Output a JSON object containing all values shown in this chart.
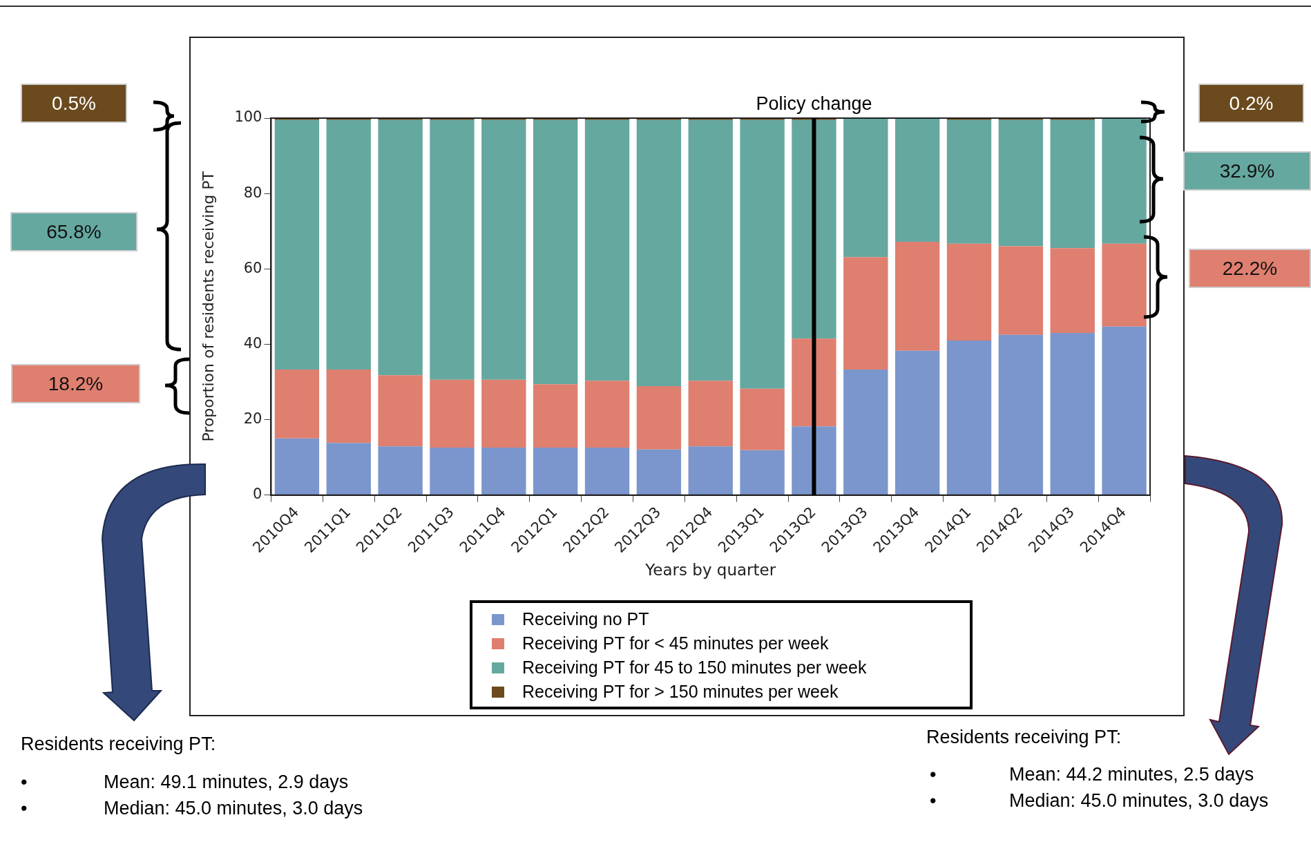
{
  "chart_data": {
    "type": "bar",
    "stacked": true,
    "xlabel": "Years by quarter",
    "ylabel": "Proportion of residents receiving PT",
    "categories": [
      "2010Q4",
      "2011Q1",
      "2011Q2",
      "2011Q3",
      "2011Q4",
      "2012Q1",
      "2012Q2",
      "2012Q3",
      "2012Q4",
      "2013Q1",
      "2013Q2",
      "2013Q3",
      "2013Q4",
      "2014Q1",
      "2014Q2",
      "2014Q3",
      "2014Q4"
    ],
    "series": [
      {
        "name": "Receiving no  PT",
        "color": "#7b96cc",
        "values": [
          15.0,
          13.8,
          12.9,
          12.6,
          12.6,
          12.6,
          12.6,
          12.1,
          12.9,
          11.9,
          18.2,
          33.3,
          38.3,
          41.0,
          42.5,
          43.0,
          44.7
        ]
      },
      {
        "name": "Receiving PT for < 45 minutes per week",
        "color": "#df7f6f",
        "values": [
          18.3,
          19.5,
          18.9,
          18.0,
          18.0,
          16.8,
          17.7,
          16.8,
          17.4,
          16.3,
          23.3,
          29.8,
          28.9,
          25.7,
          23.5,
          22.5,
          22.0
        ]
      },
      {
        "name": "Receiving PT for 45 to 150 minutes per week",
        "color": "#65a8a0",
        "values": [
          66.2,
          66.2,
          67.7,
          68.9,
          68.9,
          70.1,
          69.2,
          70.6,
          69.2,
          71.3,
          58.0,
          36.9,
          32.8,
          32.8,
          33.5,
          34.0,
          33.3
        ]
      },
      {
        "name": "Receiving PT for > 150 minutes per week",
        "color": "#6b4a1e",
        "values": [
          0.5,
          0.5,
          0.5,
          0.5,
          0.5,
          0.5,
          0.5,
          0.5,
          0.5,
          0.5,
          0.5,
          0,
          0,
          0.5,
          0.5,
          0.5,
          0
        ]
      }
    ],
    "ylim": [
      0,
      100
    ],
    "yticks": [
      0,
      20,
      40,
      60,
      80,
      100
    ],
    "ref_lines": [
      {
        "axis": "x",
        "value": "2013Q2",
        "label": "Policy change",
        "color": "#000000"
      }
    ],
    "legend": "bottom",
    "annotations": [
      "0.5%",
      "65.8%",
      "18.2%",
      "0.2%",
      "32.9%",
      "22.2%",
      "Residents receiving PT:",
      "•",
      "Mean: 49.1 minutes, 2.9 days",
      "•",
      "Median: 45.0 minutes, 3.0 days",
      "Residents receiving PT:",
      "•",
      "Mean: 44.2 minutes, 2.5 days",
      "•",
      "Median: 45.0 minutes, 3.0 days"
    ]
  }
}
